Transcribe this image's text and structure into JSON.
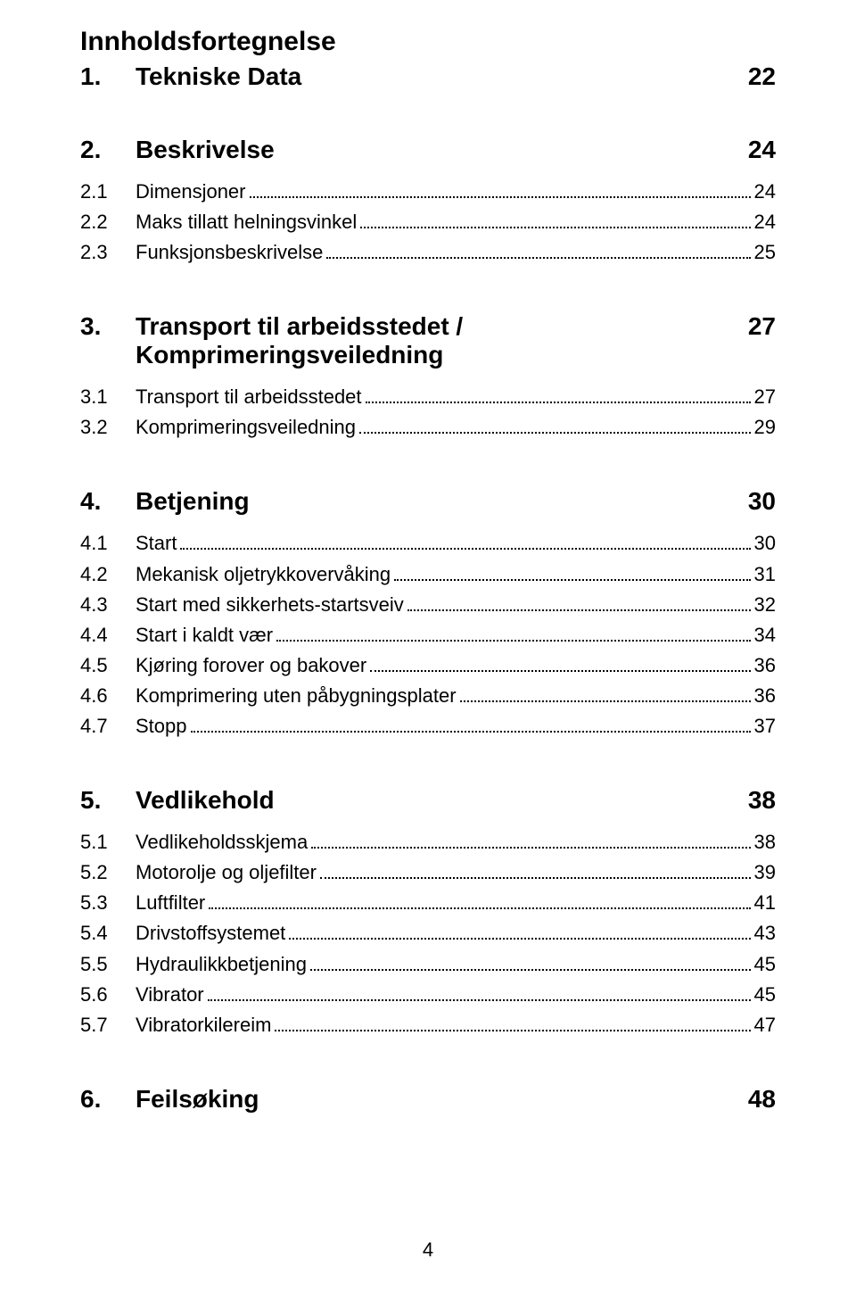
{
  "title": "Innholdsfortegnelse",
  "footer_page": "4",
  "sections": [
    {
      "num": "1.",
      "title": "Tekniske Data",
      "page": "22",
      "entries": []
    },
    {
      "num": "2.",
      "title": "Beskrivelse",
      "page": "24",
      "entries": [
        {
          "num": "2.1",
          "label": "Dimensjoner",
          "page": "24"
        },
        {
          "num": "2.2",
          "label": "Maks tillatt helningsvinkel",
          "page": "24"
        },
        {
          "num": "2.3",
          "label": "Funksjonsbeskrivelse",
          "page": "25"
        }
      ]
    },
    {
      "num": "3.",
      "title": "Transport til arbeidsstedet / Komprimeringsveiledning",
      "page": "27",
      "entries": [
        {
          "num": "3.1",
          "label": "Transport til arbeidsstedet",
          "page": "27"
        },
        {
          "num": "3.2",
          "label": "Komprimeringsveiledning",
          "page": "29"
        }
      ]
    },
    {
      "num": "4.",
      "title": "Betjening",
      "page": "30",
      "entries": [
        {
          "num": "4.1",
          "label": "Start",
          "page": "30"
        },
        {
          "num": "4.2",
          "label": "Mekanisk oljetrykkovervåking",
          "page": "31"
        },
        {
          "num": "4.3",
          "label": "Start med sikkerhets-startsveiv",
          "page": "32"
        },
        {
          "num": "4.4",
          "label": "Start i kaldt vær",
          "page": "34"
        },
        {
          "num": "4.5",
          "label": "Kjøring forover og bakover",
          "page": "36"
        },
        {
          "num": "4.6",
          "label": "Komprimering uten påbygningsplater",
          "page": "36"
        },
        {
          "num": "4.7",
          "label": "Stopp",
          "page": "37"
        }
      ]
    },
    {
      "num": "5.",
      "title": "Vedlikehold",
      "page": "38",
      "entries": [
        {
          "num": "5.1",
          "label": "Vedlikeholdsskjema",
          "page": "38"
        },
        {
          "num": "5.2",
          "label": "Motorolje og oljefilter",
          "page": "39"
        },
        {
          "num": "5.3",
          "label": "Luftfilter",
          "page": "41"
        },
        {
          "num": "5.4",
          "label": "Drivstoffsystemet",
          "page": "43"
        },
        {
          "num": "5.5",
          "label": "Hydraulikkbetjening",
          "page": "45"
        },
        {
          "num": "5.6",
          "label": "Vibrator",
          "page": "45"
        },
        {
          "num": "5.7",
          "label": "Vibratorkilereim",
          "page": "47"
        }
      ]
    },
    {
      "num": "6.",
      "title": "Feilsøking",
      "page": "48",
      "entries": []
    }
  ]
}
